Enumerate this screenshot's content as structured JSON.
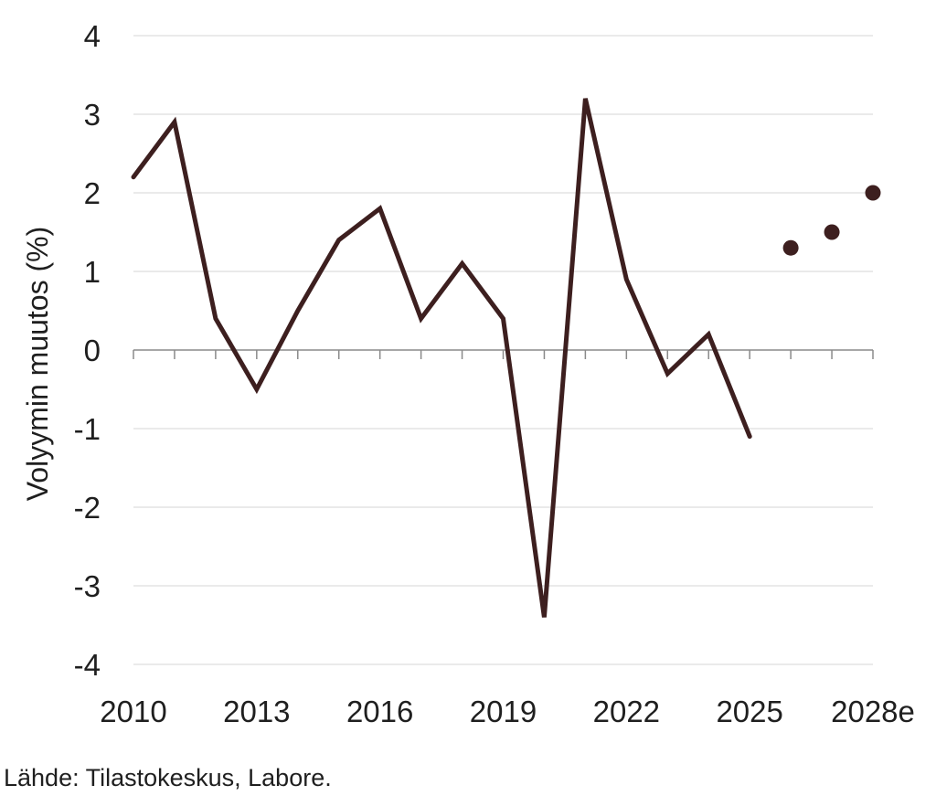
{
  "chart_data": {
    "type": "line",
    "title": "",
    "xlabel": "",
    "ylabel": "Volyymin muutos (%)",
    "ylim": [
      -4,
      4
    ],
    "yticks": [
      "4",
      "3",
      "2",
      "1",
      "0",
      "-1",
      "-2",
      "-3",
      "-4"
    ],
    "xlim": [
      2010,
      2028
    ],
    "xticks": [
      {
        "x": 2010,
        "label": "2010"
      },
      {
        "x": 2013,
        "label": "2013"
      },
      {
        "x": 2016,
        "label": "2016"
      },
      {
        "x": 2019,
        "label": "2019"
      },
      {
        "x": 2022,
        "label": "2022"
      },
      {
        "x": 2025,
        "label": "2025"
      },
      {
        "x": 2028,
        "label": "2028e"
      }
    ],
    "grid": true,
    "series": [
      {
        "style": "line",
        "color": "#3d1f1f",
        "points": [
          {
            "x": 2010,
            "y": 2.2
          },
          {
            "x": 2011,
            "y": 2.9
          },
          {
            "x": 2012,
            "y": 0.4
          },
          {
            "x": 2013,
            "y": -0.5
          },
          {
            "x": 2014,
            "y": 0.5
          },
          {
            "x": 2015,
            "y": 1.4
          },
          {
            "x": 2016,
            "y": 1.8
          },
          {
            "x": 2017,
            "y": 0.4
          },
          {
            "x": 2018,
            "y": 1.1
          },
          {
            "x": 2019,
            "y": 0.4
          },
          {
            "x": 2020,
            "y": -3.4
          },
          {
            "x": 2021,
            "y": 3.2
          },
          {
            "x": 2022,
            "y": 0.9
          },
          {
            "x": 2023,
            "y": -0.3
          },
          {
            "x": 2024,
            "y": 0.2
          },
          {
            "x": 2025,
            "y": -1.1
          }
        ]
      },
      {
        "style": "markers",
        "color": "#3d1f1f",
        "points": [
          {
            "x": 2026,
            "y": 1.3
          },
          {
            "x": 2027,
            "y": 1.5
          },
          {
            "x": 2028,
            "y": 2.0
          }
        ]
      }
    ]
  },
  "source_note": "Lähde: Tilastokeskus, Labore."
}
